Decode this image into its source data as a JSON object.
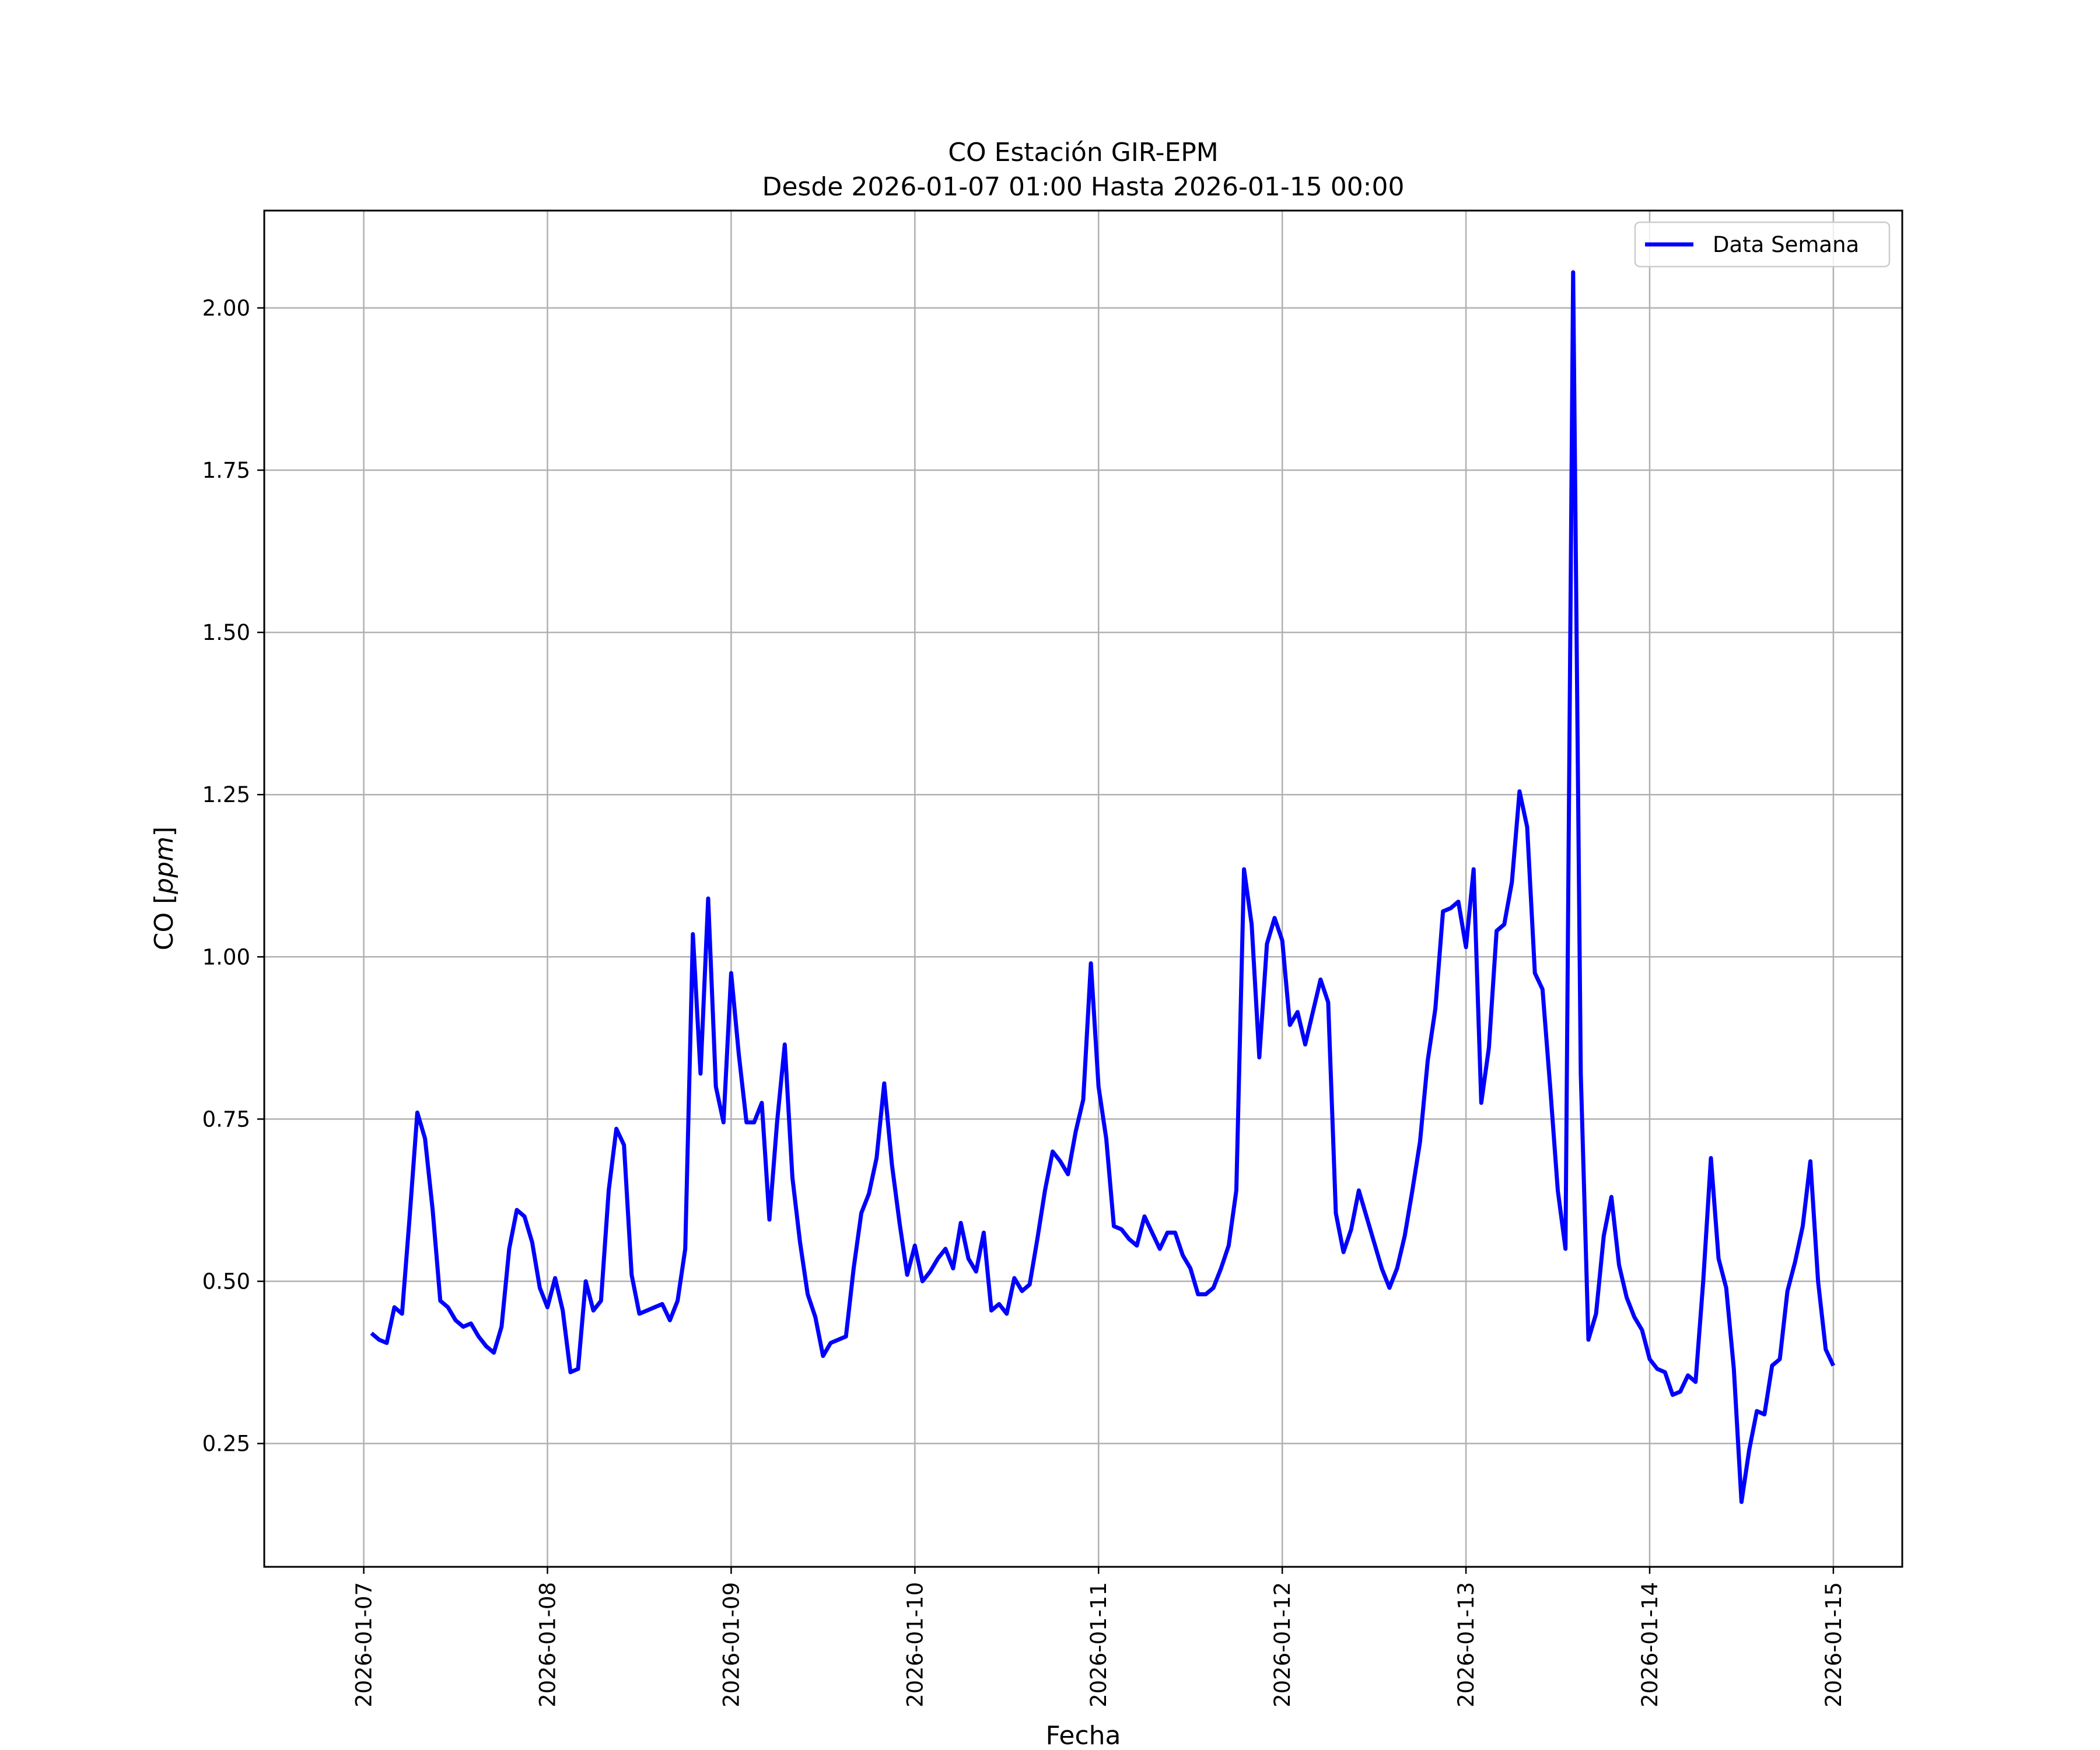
{
  "chart_data": {
    "type": "line",
    "title": "CO Estación GIR-EPM",
    "subtitle": "Desde 2026-01-07 01:00 Hasta 2026-01-15 00:00",
    "xlabel": "Fecha",
    "ylabel_prefix": "CO [",
    "ylabel_unit": "ppm",
    "ylabel_suffix": "]",
    "ylim": [
      0.06,
      2.15
    ],
    "xlim": [
      "2026-01-06 11:00",
      "2026-01-15 09:00"
    ],
    "grid": true,
    "legend_position": "top-right",
    "x_ticks": [
      {
        "value": "2026-01-07 00:00",
        "label": "2026-01-07"
      },
      {
        "value": "2026-01-08 00:00",
        "label": "2026-01-08"
      },
      {
        "value": "2026-01-09 00:00",
        "label": "2026-01-09"
      },
      {
        "value": "2026-01-10 00:00",
        "label": "2026-01-10"
      },
      {
        "value": "2026-01-11 00:00",
        "label": "2026-01-11"
      },
      {
        "value": "2026-01-12 00:00",
        "label": "2026-01-12"
      },
      {
        "value": "2026-01-13 00:00",
        "label": "2026-01-13"
      },
      {
        "value": "2026-01-14 00:00",
        "label": "2026-01-14"
      },
      {
        "value": "2026-01-15 00:00",
        "label": "2026-01-15"
      }
    ],
    "y_ticks": [
      {
        "value": 0.25,
        "label": "0.25"
      },
      {
        "value": 0.5,
        "label": "0.50"
      },
      {
        "value": 0.75,
        "label": "0.75"
      },
      {
        "value": 1.0,
        "label": "1.00"
      },
      {
        "value": 1.25,
        "label": "1.25"
      },
      {
        "value": 1.5,
        "label": "1.50"
      },
      {
        "value": 1.75,
        "label": "1.75"
      },
      {
        "value": 2.0,
        "label": "2.00"
      }
    ],
    "series": [
      {
        "name": "Data Semana",
        "color": "#0000ff",
        "x": [
          "2026-01-07 01:00",
          "2026-01-07 02:00",
          "2026-01-07 03:00",
          "2026-01-07 04:00",
          "2026-01-07 05:00",
          "2026-01-07 06:00",
          "2026-01-07 07:00",
          "2026-01-07 08:00",
          "2026-01-07 09:00",
          "2026-01-07 10:00",
          "2026-01-07 11:00",
          "2026-01-07 12:00",
          "2026-01-07 13:00",
          "2026-01-07 14:00",
          "2026-01-07 15:00",
          "2026-01-07 16:00",
          "2026-01-07 17:00",
          "2026-01-07 18:00",
          "2026-01-07 19:00",
          "2026-01-07 20:00",
          "2026-01-07 21:00",
          "2026-01-07 22:00",
          "2026-01-07 23:00",
          "2026-01-08 00:00",
          "2026-01-08 01:00",
          "2026-01-08 02:00",
          "2026-01-08 03:00",
          "2026-01-08 04:00",
          "2026-01-08 05:00",
          "2026-01-08 06:00",
          "2026-01-08 07:00",
          "2026-01-08 08:00",
          "2026-01-08 09:00",
          "2026-01-08 10:00",
          "2026-01-08 11:00",
          "2026-01-08 12:00",
          "2026-01-08 13:00",
          "2026-01-08 14:00",
          "2026-01-08 15:00",
          "2026-01-08 16:00",
          "2026-01-08 17:00",
          "2026-01-08 18:00",
          "2026-01-08 19:00",
          "2026-01-08 20:00",
          "2026-01-08 21:00",
          "2026-01-08 22:00",
          "2026-01-08 23:00",
          "2026-01-09 00:00",
          "2026-01-09 01:00",
          "2026-01-09 02:00",
          "2026-01-09 03:00",
          "2026-01-09 04:00",
          "2026-01-09 05:00",
          "2026-01-09 06:00",
          "2026-01-09 07:00",
          "2026-01-09 08:00",
          "2026-01-09 09:00",
          "2026-01-09 10:00",
          "2026-01-09 11:00",
          "2026-01-09 12:00",
          "2026-01-09 13:00",
          "2026-01-09 14:00",
          "2026-01-09 15:00",
          "2026-01-09 16:00",
          "2026-01-09 17:00",
          "2026-01-09 18:00",
          "2026-01-09 19:00",
          "2026-01-09 20:00",
          "2026-01-09 21:00",
          "2026-01-09 22:00",
          "2026-01-09 23:00",
          "2026-01-10 00:00",
          "2026-01-10 01:00",
          "2026-01-10 02:00",
          "2026-01-10 03:00",
          "2026-01-10 04:00",
          "2026-01-10 05:00",
          "2026-01-10 06:00",
          "2026-01-10 07:00",
          "2026-01-10 08:00",
          "2026-01-10 09:00",
          "2026-01-10 10:00",
          "2026-01-10 11:00",
          "2026-01-10 12:00",
          "2026-01-10 13:00",
          "2026-01-10 14:00",
          "2026-01-10 15:00",
          "2026-01-10 16:00",
          "2026-01-10 17:00",
          "2026-01-10 18:00",
          "2026-01-10 19:00",
          "2026-01-10 20:00",
          "2026-01-10 21:00",
          "2026-01-10 22:00",
          "2026-01-10 23:00",
          "2026-01-11 00:00",
          "2026-01-11 01:00",
          "2026-01-11 02:00",
          "2026-01-11 03:00",
          "2026-01-11 04:00",
          "2026-01-11 05:00",
          "2026-01-11 06:00",
          "2026-01-11 07:00",
          "2026-01-11 08:00",
          "2026-01-11 09:00",
          "2026-01-11 10:00",
          "2026-01-11 11:00",
          "2026-01-11 12:00",
          "2026-01-11 13:00",
          "2026-01-11 14:00",
          "2026-01-11 15:00",
          "2026-01-11 16:00",
          "2026-01-11 17:00",
          "2026-01-11 18:00",
          "2026-01-11 19:00",
          "2026-01-11 20:00",
          "2026-01-11 21:00",
          "2026-01-11 22:00",
          "2026-01-11 23:00",
          "2026-01-12 00:00",
          "2026-01-12 01:00",
          "2026-01-12 02:00",
          "2026-01-12 03:00",
          "2026-01-12 04:00",
          "2026-01-12 05:00",
          "2026-01-12 06:00",
          "2026-01-12 07:00",
          "2026-01-12 08:00",
          "2026-01-12 09:00",
          "2026-01-12 10:00",
          "2026-01-12 11:00",
          "2026-01-12 12:00",
          "2026-01-12 13:00",
          "2026-01-12 14:00",
          "2026-01-12 15:00",
          "2026-01-12 16:00",
          "2026-01-12 17:00",
          "2026-01-12 18:00",
          "2026-01-12 19:00",
          "2026-01-12 20:00",
          "2026-01-12 21:00",
          "2026-01-12 22:00",
          "2026-01-12 23:00",
          "2026-01-13 00:00",
          "2026-01-13 01:00",
          "2026-01-13 02:00",
          "2026-01-13 03:00",
          "2026-01-13 04:00",
          "2026-01-13 05:00",
          "2026-01-13 06:00",
          "2026-01-13 07:00",
          "2026-01-13 08:00",
          "2026-01-13 09:00",
          "2026-01-13 10:00",
          "2026-01-13 11:00",
          "2026-01-13 12:00",
          "2026-01-13 13:00",
          "2026-01-13 14:00",
          "2026-01-13 15:00",
          "2026-01-13 16:00",
          "2026-01-13 17:00",
          "2026-01-13 18:00",
          "2026-01-13 19:00",
          "2026-01-13 20:00",
          "2026-01-13 21:00",
          "2026-01-13 22:00",
          "2026-01-13 23:00",
          "2026-01-14 00:00",
          "2026-01-14 01:00",
          "2026-01-14 02:00",
          "2026-01-14 03:00",
          "2026-01-14 04:00",
          "2026-01-14 05:00",
          "2026-01-14 06:00",
          "2026-01-14 07:00",
          "2026-01-14 08:00",
          "2026-01-14 09:00",
          "2026-01-14 10:00",
          "2026-01-14 11:00",
          "2026-01-14 12:00",
          "2026-01-14 13:00",
          "2026-01-14 14:00",
          "2026-01-14 15:00",
          "2026-01-14 16:00",
          "2026-01-14 17:00",
          "2026-01-14 18:00",
          "2026-01-14 19:00",
          "2026-01-14 20:00",
          "2026-01-14 21:00",
          "2026-01-14 22:00",
          "2026-01-14 23:00",
          "2026-01-15 00:00"
        ],
        "values": [
          0.42,
          0.41,
          0.405,
          0.46,
          0.45,
          0.6,
          0.76,
          0.72,
          0.61,
          0.47,
          0.46,
          0.44,
          0.43,
          0.435,
          0.415,
          0.4,
          0.39,
          0.43,
          0.55,
          0.61,
          0.6,
          0.56,
          0.49,
          0.46,
          0.505,
          0.455,
          0.36,
          0.365,
          0.5,
          0.455,
          0.47,
          0.64,
          0.735,
          0.71,
          0.51,
          0.45,
          0.455,
          0.46,
          0.465,
          0.44,
          0.47,
          0.55,
          1.035,
          0.82,
          1.09,
          0.8,
          0.745,
          0.975,
          0.85,
          0.745,
          0.745,
          0.775,
          0.595,
          0.745,
          0.865,
          0.66,
          0.56,
          0.48,
          0.445,
          0.385,
          0.405,
          0.41,
          0.415,
          0.52,
          0.605,
          0.635,
          0.69,
          0.805,
          0.68,
          0.59,
          0.51,
          0.555,
          0.5,
          0.515,
          0.535,
          0.55,
          0.52,
          0.59,
          0.535,
          0.515,
          0.575,
          0.455,
          0.465,
          0.45,
          0.505,
          0.485,
          0.495,
          0.565,
          0.64,
          0.7,
          0.685,
          0.665,
          0.73,
          0.78,
          0.99,
          0.8,
          0.72,
          0.585,
          0.58,
          0.565,
          0.555,
          0.6,
          0.575,
          0.55,
          0.575,
          0.575,
          0.54,
          0.52,
          0.48,
          0.48,
          0.49,
          0.52,
          0.555,
          0.64,
          1.135,
          1.05,
          0.845,
          1.02,
          1.06,
          1.025,
          0.895,
          0.915,
          0.865,
          0.915,
          0.965,
          0.93,
          0.605,
          0.545,
          0.58,
          0.64,
          0.6,
          0.56,
          0.52,
          0.49,
          0.52,
          0.57,
          0.64,
          0.715,
          0.84,
          0.92,
          1.07,
          1.075,
          1.085,
          1.015,
          1.135,
          0.775,
          0.86,
          1.04,
          1.05,
          1.115,
          1.255,
          1.2,
          0.975,
          0.95,
          0.8,
          0.64,
          0.55,
          2.055,
          0.82,
          0.41,
          0.45,
          0.57,
          0.63,
          0.525,
          0.475,
          0.445,
          0.425,
          0.38,
          0.365,
          0.36,
          0.325,
          0.33,
          0.355,
          0.345,
          0.5,
          0.69,
          0.535,
          0.49,
          0.365,
          0.16,
          0.24,
          0.3,
          0.295,
          0.37,
          0.38,
          0.485,
          0.53,
          0.585,
          0.685,
          0.5,
          0.395,
          0.37
        ]
      }
    ]
  }
}
